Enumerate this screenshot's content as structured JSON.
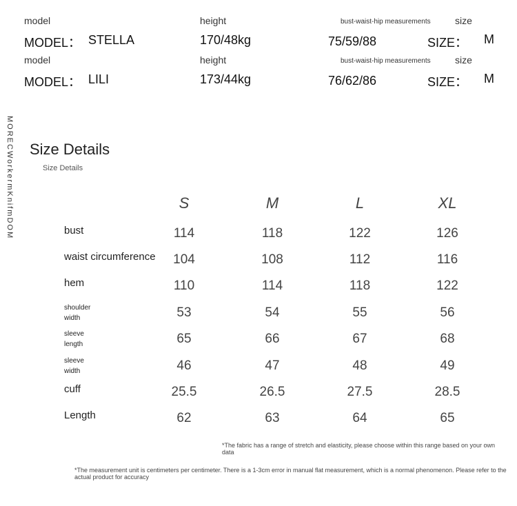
{
  "models": [
    {
      "model_label": "model",
      "height_label": "height",
      "measure_label": "bust-waist-hip measurements",
      "size_label": "size",
      "model_prefix": "MODEL：",
      "name": "STELLA",
      "height": "170/48kg",
      "measurements": "75/59/88",
      "size_prefix": "SIZE：",
      "size": "M"
    },
    {
      "model_label": "model",
      "height_label": "height",
      "measure_label": "bust-waist-hip measurements",
      "size_label": "size",
      "model_prefix": "MODEL：",
      "name": "LILI",
      "height": "173/44kg",
      "measurements": "76/62/86",
      "size_prefix": "SIZE：",
      "size": "M"
    }
  ],
  "side_text": "MORECWorkermKnifmDOM",
  "title": "Size Details",
  "subtitle": "Size Details",
  "table": {
    "columns": [
      "S",
      "M",
      "L",
      "XL"
    ],
    "rows": [
      {
        "label": "bust",
        "values": [
          114,
          118,
          122,
          126
        ]
      },
      {
        "label": "waist circumference",
        "values": [
          104,
          108,
          112,
          116
        ]
      },
      {
        "label": "hem",
        "values": [
          110,
          114,
          118,
          122
        ]
      },
      {
        "label": "shoulder width",
        "values": [
          53,
          54,
          55,
          56
        ]
      },
      {
        "label": "sleeve length",
        "values": [
          65,
          66,
          67,
          68
        ]
      },
      {
        "label": "sleeve width",
        "values": [
          46,
          47,
          48,
          49
        ]
      },
      {
        "label": "cuff",
        "values": [
          25.5,
          26.5,
          27.5,
          28.5
        ]
      },
      {
        "label": "Length",
        "values": [
          62,
          63,
          64,
          65
        ]
      }
    ]
  },
  "notes": [
    "*The fabric has a range of stretch and elasticity, please choose within this range based on your own data",
    "*The measurement unit is centimeters per centimeter. There is a 1-3cm error in manual flat measurement, which is a normal phenomenon. Please refer to the actual product for accuracy"
  ]
}
